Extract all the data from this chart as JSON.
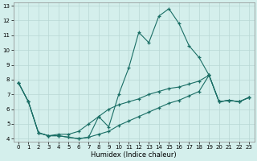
{
  "xlabel": "Humidex (Indice chaleur)",
  "background_color": "#d4efec",
  "grid_color": "#b8d8d4",
  "line_color": "#1a6e65",
  "xlim": [
    -0.5,
    23.5
  ],
  "ylim": [
    3.8,
    13.2
  ],
  "xticks": [
    0,
    1,
    2,
    3,
    4,
    5,
    6,
    7,
    8,
    9,
    10,
    11,
    12,
    13,
    14,
    15,
    16,
    17,
    18,
    19,
    20,
    21,
    22,
    23
  ],
  "yticks": [
    4,
    5,
    6,
    7,
    8,
    9,
    10,
    11,
    12,
    13
  ],
  "line1_x": [
    0,
    1,
    2,
    3,
    4,
    5,
    6,
    7,
    8,
    9,
    10,
    11,
    12,
    13,
    14,
    15,
    16,
    17,
    18,
    19,
    20,
    21,
    22,
    23
  ],
  "line1_y": [
    7.8,
    6.5,
    4.4,
    4.2,
    4.2,
    4.1,
    4.0,
    4.1,
    5.5,
    4.8,
    7.0,
    8.8,
    11.2,
    10.5,
    12.3,
    12.8,
    11.8,
    10.3,
    9.5,
    8.3,
    6.5,
    6.6,
    6.5,
    6.8
  ],
  "line2_x": [
    0,
    1,
    2,
    3,
    4,
    5,
    6,
    7,
    8,
    9,
    10,
    11,
    12,
    13,
    14,
    15,
    16,
    17,
    18,
    19,
    20,
    21,
    22,
    23
  ],
  "line2_y": [
    7.8,
    6.5,
    4.4,
    4.2,
    4.3,
    4.3,
    4.5,
    5.0,
    5.5,
    6.0,
    6.3,
    6.5,
    6.7,
    7.0,
    7.2,
    7.4,
    7.5,
    7.7,
    7.9,
    8.3,
    6.5,
    6.6,
    6.5,
    6.8
  ],
  "line3_x": [
    0,
    1,
    2,
    3,
    4,
    5,
    6,
    7,
    8,
    9,
    10,
    11,
    12,
    13,
    14,
    15,
    16,
    17,
    18,
    19,
    20,
    21,
    22,
    23
  ],
  "line3_y": [
    7.8,
    6.5,
    4.4,
    4.2,
    4.2,
    4.1,
    4.0,
    4.1,
    4.3,
    4.5,
    4.9,
    5.2,
    5.5,
    5.8,
    6.1,
    6.4,
    6.6,
    6.9,
    7.2,
    8.3,
    6.5,
    6.6,
    6.5,
    6.8
  ]
}
